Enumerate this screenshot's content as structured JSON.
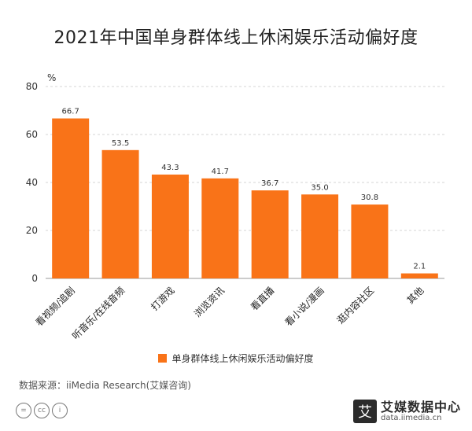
{
  "title": "2021年中国单身群体线上休闲娱乐活动偏好度",
  "colors": {
    "bar": "#F97318",
    "grid": "#d6d6d6",
    "axis": "#999999"
  },
  "chart_data": {
    "type": "bar",
    "title": "2021年中国单身群体线上休闲娱乐活动偏好度",
    "unit": "%",
    "categories": [
      "看视频/追剧",
      "听音乐/在线音频",
      "打游戏",
      "浏览资讯",
      "看直播",
      "看小说/漫画",
      "逛内容社区",
      "其他"
    ],
    "series": [
      {
        "name": "单身群体线上休闲娱乐活动偏好度",
        "values": [
          66.7,
          53.5,
          43.3,
          41.7,
          36.7,
          35.0,
          30.8,
          2.1
        ]
      }
    ],
    "ylim": [
      0,
      80
    ],
    "yticks": [
      "0",
      "20",
      "40",
      "60",
      "80"
    ],
    "data_labels": [
      "66.7",
      "53.5",
      "43.3",
      "41.7",
      "36.7",
      "35.0",
      "30.8",
      "2.1"
    ],
    "grid": true,
    "legend": "bottom"
  },
  "legend": {
    "label": "单身群体线上休闲娱乐活动偏好度"
  },
  "source": "数据来源：iiMedia Research(艾媒咨询)",
  "license": {
    "icons": [
      "equals-icon",
      "cc-icon",
      "person-icon"
    ],
    "glyphs": [
      "=",
      "cc",
      "i"
    ]
  },
  "brand": {
    "badge": "艾",
    "name": "艾媒数据中心",
    "url": "data.iimedia.cn"
  }
}
